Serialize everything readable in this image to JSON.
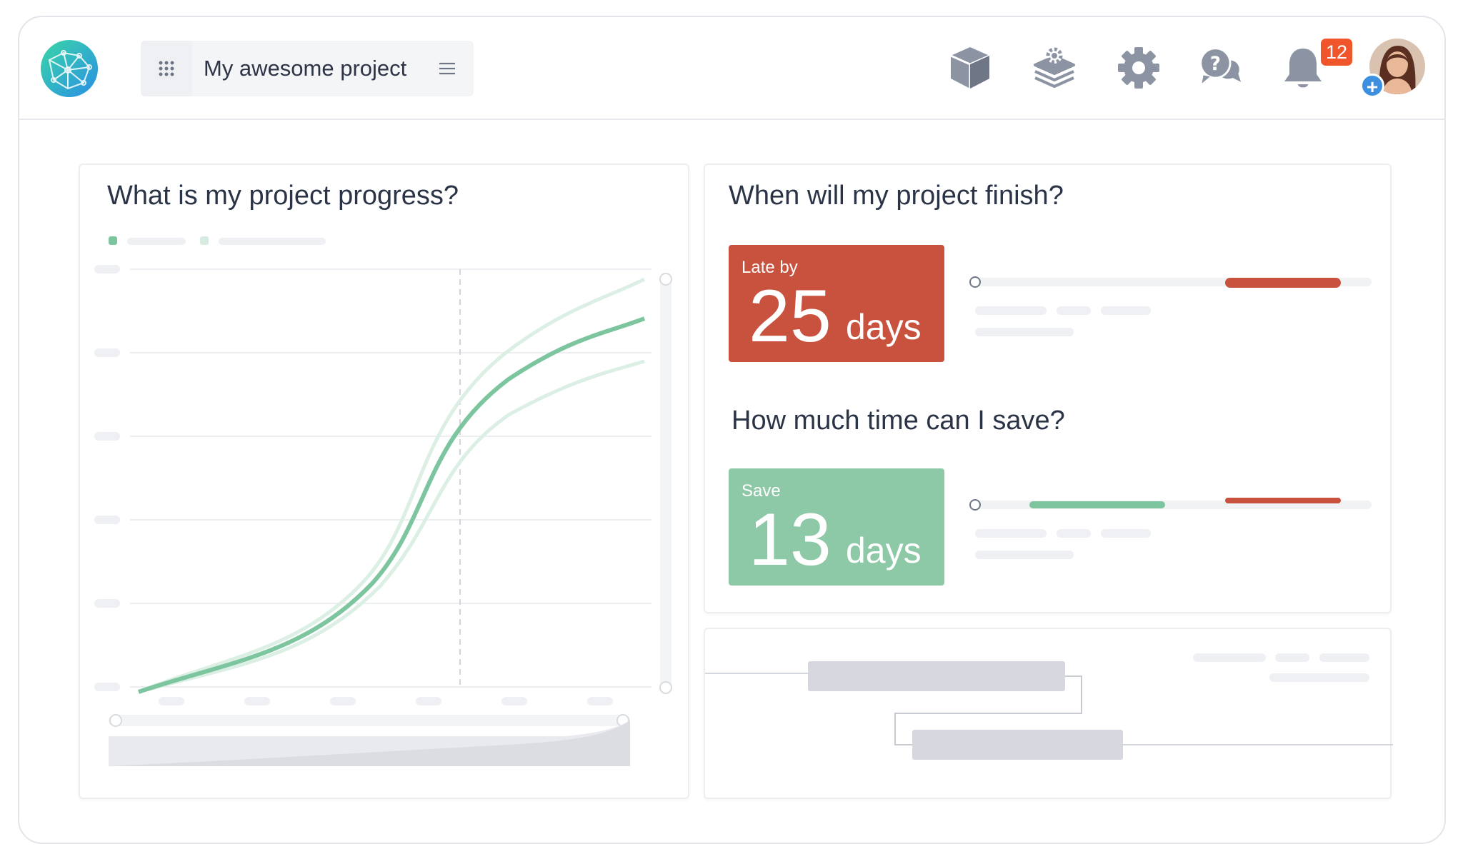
{
  "header": {
    "project_name": "My awesome project",
    "notifications_count": "12",
    "icons": [
      "logo-icon",
      "apps-grid-icon",
      "menu-icon",
      "package-icon",
      "layers-settings-icon",
      "gear-icon",
      "help-chat-icon",
      "bell-icon"
    ]
  },
  "progress_card": {
    "title": "What is my project progress?"
  },
  "finish_card": {
    "title": "When will my project finish?",
    "late_label": "Late by",
    "late_value": "25",
    "late_unit": "days",
    "save_title": "How much time can I save?",
    "save_label": "Save",
    "save_value": "13",
    "save_unit": "days"
  },
  "colors": {
    "accent_green": "#7cc59f",
    "late_red": "#c9523f",
    "save_green": "#8dc8a7",
    "badge_orange": "#f0552c",
    "icon_gray": "#8c94a4"
  }
}
